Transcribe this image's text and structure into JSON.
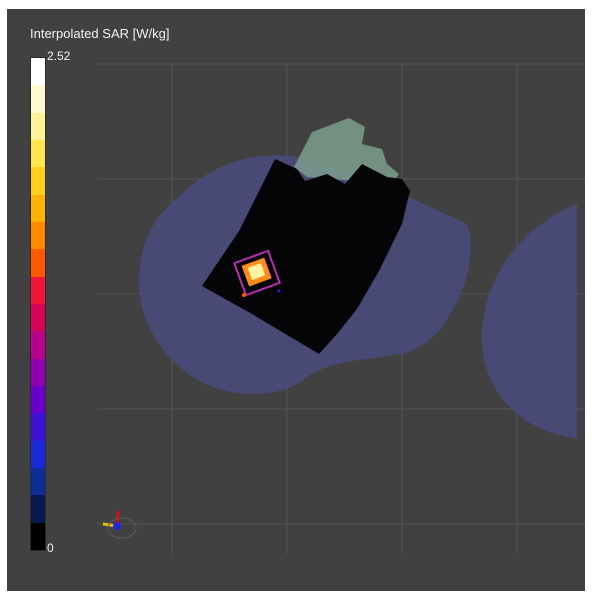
{
  "colorbar": {
    "title": "Interpolated SAR [W/kg]",
    "max_label": "2.52",
    "min_label": "0",
    "colors": [
      "#ffffff",
      "#fffbd0",
      "#fff39a",
      "#ffe74b",
      "#ffcf1a",
      "#ffb300",
      "#ff8a00",
      "#ff5a00",
      "#f0163a",
      "#d9005a",
      "#b8008c",
      "#8f00b0",
      "#6a00cc",
      "#3f10d8",
      "#1b2ad8",
      "#0c2e96",
      "#081a4d",
      "#000000"
    ]
  },
  "scene": {
    "colors": {
      "background": "#414141",
      "phantom": "#4a4a78",
      "measurement_area": "#050508",
      "zoom_region": "#7fa491",
      "hotspot_core": "#fff2a0",
      "hotspot_mid": "#ff8c1a",
      "hotspot_outer": "#b52fb0"
    }
  }
}
